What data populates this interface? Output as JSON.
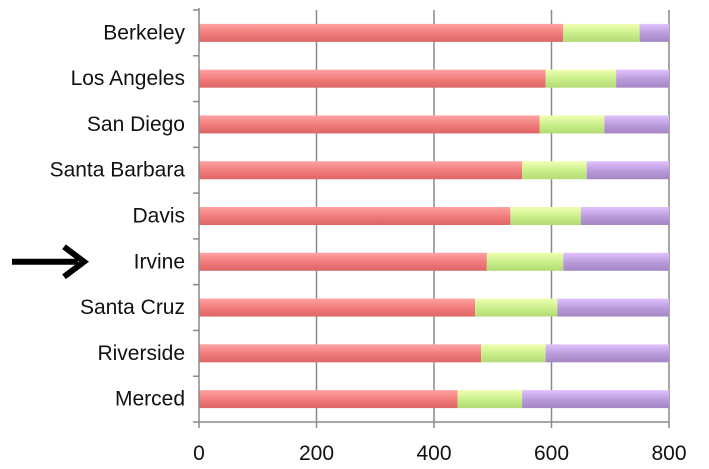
{
  "chart_data": {
    "type": "bar",
    "orientation": "horizontal",
    "stacked": true,
    "categories": [
      "Berkeley",
      "Los Angeles",
      "San Diego",
      "Santa Barbara",
      "Davis",
      "Irvine",
      "Santa Cruz",
      "Riverside",
      "Merced"
    ],
    "series": [
      {
        "values": [
          620,
          590,
          580,
          550,
          530,
          490,
          470,
          480,
          440
        ],
        "color": "#f07a7a"
      },
      {
        "values": [
          130,
          120,
          110,
          110,
          120,
          130,
          140,
          110,
          110
        ],
        "color": "#c8ee8a"
      },
      {
        "values": [
          50,
          90,
          110,
          140,
          150,
          180,
          190,
          210,
          250
        ],
        "color": "#b99ad9"
      }
    ],
    "x_ticks": [
      "0",
      "200",
      "400",
      "600",
      "800"
    ],
    "xlim": [
      0,
      800
    ],
    "grid": true,
    "legend": "none",
    "annotation": {
      "type": "arrow",
      "points_to": "Irvine",
      "icon": "right-arrow-icon"
    }
  }
}
